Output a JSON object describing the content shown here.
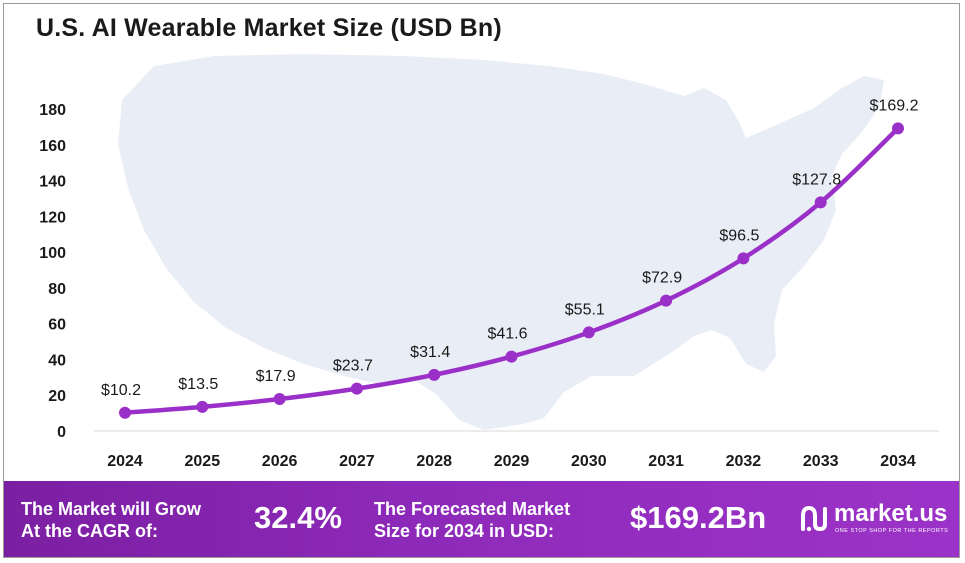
{
  "chart_data": {
    "type": "line",
    "title": "U.S. AI Wearable Market Size (USD Bn)",
    "xlabel": "",
    "ylabel": "",
    "categories": [
      "2024",
      "2025",
      "2026",
      "2027",
      "2028",
      "2029",
      "2030",
      "2031",
      "2032",
      "2033",
      "2034"
    ],
    "values": [
      10.2,
      13.5,
      17.9,
      23.7,
      31.4,
      41.6,
      55.1,
      72.9,
      96.5,
      127.8,
      169.2
    ],
    "data_labels": [
      "$10.2",
      "$13.5",
      "$17.9",
      "$23.7",
      "$31.4",
      "$41.6",
      "$55.1",
      "$72.9",
      "$96.5",
      "$127.8",
      "$169.2"
    ],
    "y_ticks": [
      0,
      20,
      40,
      60,
      80,
      100,
      120,
      140,
      160,
      180
    ],
    "ylim": [
      0,
      180
    ],
    "grid": false,
    "legend": "none",
    "colors": {
      "line": "#9b30c9",
      "marker": "#9b30c9",
      "map_background": "#e9eef6"
    }
  },
  "footer": {
    "cagr_label_line1": "The Market will Grow",
    "cagr_label_line2": "At the CAGR of:",
    "cagr_value": "32.4%",
    "forecast_label_line1": "The Forecasted Market",
    "forecast_label_line2": "Size for 2034 in USD:",
    "forecast_value": "$169.2Bn",
    "brand_name": "market.us",
    "brand_tagline": "ONE STOP SHOP FOR THE REPORTS",
    "colors": {
      "background_start": "#7b1fa2",
      "background_end": "#9c33c8",
      "text": "#ffffff"
    }
  }
}
